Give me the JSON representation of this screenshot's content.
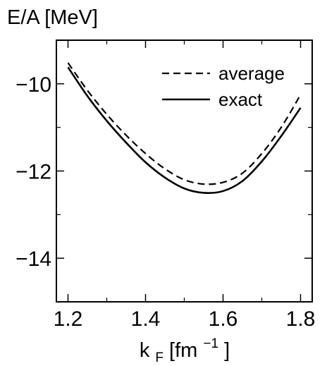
{
  "chart_data": {
    "type": "line",
    "ylabel": "E/A [MeV]",
    "xlabel": {
      "main": "k",
      "subscript": "F",
      "unit_open": " [fm",
      "superscript": "−1",
      "unit_close": "]"
    },
    "xlim": [
      1.17,
      1.83
    ],
    "ylim": [
      -15.0,
      -9.0
    ],
    "x_ticks": [
      1.2,
      1.4,
      1.6,
      1.8
    ],
    "x_tick_labels": [
      "1.2",
      "1.4",
      "1.6",
      "1.8"
    ],
    "y_ticks": [
      -10,
      -12,
      -14
    ],
    "y_tick_labels": [
      "−10",
      "−12",
      "−14"
    ],
    "legend_position": "top-right",
    "series": [
      {
        "name": "average",
        "style": "dashed",
        "color": "#000000",
        "x": [
          1.2,
          1.25,
          1.3,
          1.35,
          1.4,
          1.45,
          1.5,
          1.55,
          1.6,
          1.65,
          1.7,
          1.75,
          1.8
        ],
        "y": [
          -9.52,
          -10.15,
          -10.7,
          -11.18,
          -11.6,
          -11.95,
          -12.2,
          -12.3,
          -12.26,
          -12.05,
          -11.6,
          -11.0,
          -10.25
        ]
      },
      {
        "name": "exact",
        "style": "solid",
        "color": "#000000",
        "x": [
          1.2,
          1.25,
          1.3,
          1.35,
          1.4,
          1.45,
          1.5,
          1.55,
          1.6,
          1.65,
          1.7,
          1.75,
          1.8
        ],
        "y": [
          -9.62,
          -10.28,
          -10.85,
          -11.35,
          -11.8,
          -12.15,
          -12.4,
          -12.5,
          -12.46,
          -12.23,
          -11.78,
          -11.2,
          -10.55
        ]
      }
    ]
  }
}
